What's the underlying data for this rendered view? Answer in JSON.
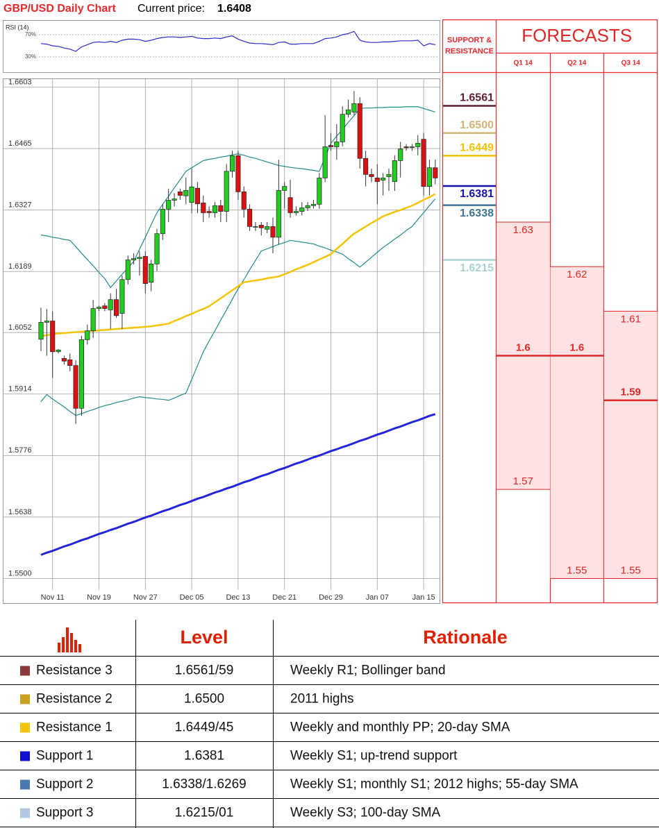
{
  "header": {
    "title": "GBP/USD Daily Chart",
    "price_label": "Current price:",
    "price": 1.6408
  },
  "chart_data": [
    {
      "type": "candlestick",
      "categories": [
        null,
        null,
        "Nov 11",
        null,
        null,
        null,
        null,
        null,
        null,
        null,
        "Nov 19",
        null,
        null,
        null,
        null,
        null,
        null,
        null,
        "Nov 27",
        null,
        null,
        null,
        null,
        null,
        null,
        null,
        "Dec 05",
        null,
        null,
        null,
        null,
        null,
        null,
        null,
        "Dec 13",
        null,
        null,
        null,
        null,
        null,
        null,
        null,
        "Dec 21",
        null,
        null,
        null,
        null,
        null,
        null,
        null,
        "Dec 29",
        null,
        null,
        null,
        null,
        null,
        null,
        null,
        "Jan 07",
        null,
        null,
        null,
        null,
        null,
        null,
        null,
        "Jan 15",
        null,
        null
      ],
      "open": [
        1.6037,
        1.6075,
        1.6078,
        1.6009,
        1.5994,
        1.5991,
        1.5978,
        1.5882,
        1.6036,
        1.6056,
        1.6106,
        1.6112,
        1.6103,
        1.6126,
        1.6095,
        1.6171,
        1.6215,
        1.6218,
        1.6223,
        1.6165,
        1.6206,
        1.6274,
        1.6329,
        1.6349,
        1.6368,
        1.6359,
        1.6344,
        1.6376,
        1.6343,
        1.6324,
        1.6321,
        1.6337,
        1.6324,
        1.6414,
        1.6449,
        1.6368,
        1.6329,
        1.629,
        1.6293,
        1.6284,
        1.629,
        1.6266,
        1.6371,
        1.6355,
        1.6321,
        1.6324,
        1.6332,
        1.6337,
        1.634,
        1.6399,
        1.6472,
        1.6469,
        1.648,
        1.6542,
        1.6547,
        1.6566,
        1.6443,
        1.6407,
        1.6399,
        1.6394,
        1.6402,
        1.6391,
        1.6438,
        1.6469,
        1.6469,
        1.6469,
        1.6486,
        1.638,
        1.6422
      ],
      "high": [
        1.6108,
        1.6105,
        1.61,
        1.6015,
        1.6,
        1.6005,
        1.599,
        1.6045,
        1.607,
        1.6125,
        1.6112,
        1.6118,
        1.614,
        1.615,
        1.618,
        1.6225,
        1.623,
        1.6235,
        1.6235,
        1.6215,
        1.6285,
        1.634,
        1.6375,
        1.6365,
        1.6375,
        1.64,
        1.642,
        1.639,
        1.636,
        1.6335,
        1.6345,
        1.635,
        1.643,
        1.646,
        1.646,
        1.638,
        1.634,
        1.63,
        1.63,
        1.63,
        1.631,
        1.644,
        1.639,
        1.6395,
        1.6335,
        1.6345,
        1.6345,
        1.635,
        1.641,
        1.654,
        1.65,
        1.652,
        1.656,
        1.6575,
        1.6594,
        1.658,
        1.646,
        1.642,
        1.643,
        1.641,
        1.642,
        1.645,
        1.648,
        1.6475,
        1.6475,
        1.6495,
        1.65,
        1.644,
        1.644
      ],
      "low": [
        1.601,
        1.6,
        1.595,
        1.6005,
        1.598,
        1.5965,
        1.5847,
        1.5865,
        1.6025,
        1.604,
        1.61,
        1.61,
        1.606,
        1.6085,
        1.606,
        1.616,
        1.6205,
        1.618,
        1.614,
        1.6145,
        1.619,
        1.626,
        1.63,
        1.6335,
        1.635,
        1.634,
        1.632,
        1.632,
        1.63,
        1.631,
        1.631,
        1.63,
        1.63,
        1.64,
        1.635,
        1.631,
        1.628,
        1.628,
        1.627,
        1.6275,
        1.623,
        1.625,
        1.633,
        1.631,
        1.6315,
        1.6315,
        1.6325,
        1.633,
        1.633,
        1.639,
        1.646,
        1.644,
        1.647,
        1.6535,
        1.654,
        1.642,
        1.638,
        1.639,
        1.634,
        1.636,
        1.637,
        1.637,
        1.64,
        1.646,
        1.646,
        1.645,
        1.636,
        1.636,
        1.6385
      ],
      "close": [
        1.6075,
        1.6078,
        1.6009,
        1.6013,
        1.5988,
        1.5978,
        1.5882,
        1.6036,
        1.6056,
        1.6106,
        1.6109,
        1.6106,
        1.6126,
        1.609,
        1.6171,
        1.6215,
        1.6218,
        1.6221,
        1.6162,
        1.6206,
        1.6274,
        1.6329,
        1.6349,
        1.6352,
        1.636,
        1.6371,
        1.6379,
        1.6341,
        1.6321,
        1.6321,
        1.6337,
        1.6324,
        1.6414,
        1.6449,
        1.6368,
        1.6329,
        1.629,
        1.629,
        1.6287,
        1.629,
        1.6266,
        1.6371,
        1.638,
        1.6321,
        1.6324,
        1.6332,
        1.6337,
        1.634,
        1.6399,
        1.6469,
        1.6469,
        1.648,
        1.6542,
        1.6552,
        1.6566,
        1.6443,
        1.6407,
        1.6402,
        1.6391,
        1.6399,
        1.6407,
        1.6438,
        1.6464,
        1.6467,
        1.6469,
        1.6477,
        1.638,
        1.6422,
        1.6399
      ],
      "up_color": "#22cc22",
      "down_color": "#dd1111",
      "series": [
        {
          "color": "#1f8a8a",
          "values": [
            1.6271,
            1.6269,
            1.6266,
            1.6264,
            1.6261,
            1.6259,
            1.6245,
            1.623,
            1.6216,
            1.6202,
            1.6187,
            1.6173,
            1.6153,
            1.6168,
            1.6183,
            1.6197,
            1.6212,
            1.6239,
            1.6266,
            1.6294,
            1.6321,
            1.634,
            1.6358,
            1.6377,
            1.6395,
            1.6414,
            1.6422,
            1.643,
            1.6438,
            1.6441,
            1.6443,
            1.6446,
            1.6448,
            1.6451,
            1.6453,
            1.645,
            1.6446,
            1.6443,
            1.6439,
            1.6435,
            1.6431,
            1.6427,
            1.6425,
            1.6423,
            1.6421,
            1.642,
            1.6418,
            1.6416,
            1.6414,
            1.6445,
            1.6477,
            1.6493,
            1.6508,
            1.6524,
            1.6539,
            1.6555,
            1.6556,
            1.6556,
            1.6557,
            1.6557,
            1.6558,
            1.6558,
            1.6558,
            1.6559,
            1.6559,
            1.6559,
            1.6555,
            1.6551,
            1.6547
          ]
        },
        {
          "color": "#1f8a8a",
          "values": [
            1.5897,
            1.5913,
            1.5903,
            1.5894,
            1.5885,
            1.5875,
            1.5866,
            1.587,
            1.5875,
            1.5879,
            1.5884,
            1.5888,
            1.5891,
            1.5895,
            1.5898,
            1.5901,
            1.5905,
            1.5908,
            1.5906,
            1.5905,
            1.5903,
            1.5902,
            1.59,
            1.5905,
            1.5911,
            1.5916,
            1.5947,
            1.5978,
            1.6009,
            1.6033,
            1.6056,
            1.608,
            1.6103,
            1.6127,
            1.615,
            1.6171,
            1.6193,
            1.6214,
            1.6235,
            1.624,
            1.6245,
            1.625,
            1.6254,
            1.6259,
            1.6257,
            1.6255,
            1.6253,
            1.6251,
            1.6246,
            1.6242,
            1.6237,
            1.6233,
            1.6228,
            1.6218,
            1.6209,
            1.6199,
            1.621,
            1.6221,
            1.6232,
            1.6243,
            1.6252,
            1.6262,
            1.6271,
            1.6281,
            1.629,
            1.6306,
            1.6321,
            1.6337,
            1.6352
          ]
        },
        {
          "color": "#f5c400",
          "values": [
            1.6044,
            1.6046,
            1.6048,
            1.605,
            1.6051,
            1.6052,
            1.6053,
            1.6054,
            1.6055,
            1.6056,
            1.6057,
            1.6058,
            1.6059,
            1.606,
            1.6061,
            1.6062,
            1.6063,
            1.6064,
            1.6065,
            1.6066,
            1.6068,
            1.607,
            1.6072,
            1.6078,
            1.6083,
            1.6089,
            1.6094,
            1.61,
            1.6105,
            1.6111,
            1.612,
            1.6129,
            1.6138,
            1.6147,
            1.6156,
            1.6165,
            1.6167,
            1.6169,
            1.6171,
            1.6174,
            1.6176,
            1.6178,
            1.6183,
            1.6188,
            1.6194,
            1.6199,
            1.6204,
            1.621,
            1.6216,
            1.6222,
            1.6228,
            1.624,
            1.6251,
            1.6263,
            1.6274,
            1.6282,
            1.629,
            1.6298,
            1.6305,
            1.6313,
            1.6318,
            1.6323,
            1.6327,
            1.6332,
            1.6337,
            1.6343,
            1.635,
            1.6356,
            1.6363
          ]
        },
        {
          "color": "#2424dd",
          "values": [
            1.5553,
            1.5558,
            1.5562,
            1.5567,
            1.5572,
            1.5576,
            1.5581,
            1.5586,
            1.559,
            1.5595,
            1.56,
            1.5604,
            1.5609,
            1.5613,
            1.5618,
            1.5623,
            1.5627,
            1.5632,
            1.5637,
            1.5641,
            1.5646,
            1.5651,
            1.5655,
            1.566,
            1.5665,
            1.5669,
            1.5674,
            1.5679,
            1.5683,
            1.5688,
            1.5693,
            1.5697,
            1.5702,
            1.5706,
            1.5711,
            1.5716,
            1.572,
            1.5725,
            1.573,
            1.5734,
            1.5739,
            1.5744,
            1.5748,
            1.5753,
            1.5758,
            1.5762,
            1.5767,
            1.5772,
            1.5776,
            1.5781,
            1.5786,
            1.579,
            1.5795,
            1.5799,
            1.5804,
            1.5809,
            1.5813,
            1.5818,
            1.5823,
            1.5827,
            1.5832,
            1.5837,
            1.5841,
            1.5846,
            1.5851,
            1.5855,
            1.586,
            1.5865,
            1.5869
          ]
        }
      ],
      "ylim": [
        1.55,
        1.6603
      ],
      "yticks": [
        1.6603,
        1.6465,
        1.6327,
        1.6189,
        1.6052,
        1.5914,
        1.5776,
        1.5638,
        {
          "value": 1.55,
          "label": "1.5500"
        }
      ],
      "grid": true
    },
    {
      "type": "line",
      "title": "RSI (14)",
      "color": "#2a2acc",
      "values": [
        54,
        53,
        50,
        49,
        46,
        44,
        40,
        48,
        52,
        56,
        57,
        56,
        58,
        56,
        60,
        62,
        62,
        61,
        58,
        60,
        63,
        65,
        66,
        66,
        65,
        66,
        67,
        64,
        63,
        63,
        64,
        63,
        66,
        68,
        62,
        58,
        55,
        54,
        54,
        53,
        52,
        56,
        57,
        53,
        53,
        54,
        54,
        54,
        58,
        63,
        64,
        66,
        70,
        72,
        76,
        60,
        57,
        56,
        56,
        57,
        57,
        58,
        59,
        59,
        59,
        60,
        50,
        54,
        52
      ],
      "ylim": [
        5,
        85
      ],
      "yticks": [
        {
          "value": 70,
          "label": "70%"
        },
        {
          "value": 30,
          "label": "30%"
        }
      ]
    },
    {
      "type": "levels",
      "title": "SUPPORT & RESISTANCE",
      "values": [
        1.6561,
        1.65,
        1.6449,
        1.6381,
        1.6338,
        1.6215
      ],
      "value_labels": [
        "1.6561",
        "1.6500",
        "1.6449",
        "1.6381",
        "1.6338",
        "1.6215"
      ],
      "colors": [
        "#5c1c34",
        "#d4b47a",
        "#f2c200",
        "#1212a8",
        "#3f7393",
        "#a9d3d3"
      ],
      "ylim": [
        1.55,
        1.6603
      ]
    },
    {
      "type": "range",
      "title": "FORECASTS",
      "categories": [
        "Q1 14",
        "Q2 14",
        "Q3 14"
      ],
      "high": [
        1.63,
        1.62,
        1.61
      ],
      "median": [
        1.6,
        1.6,
        1.59
      ],
      "low": [
        1.57,
        1.55,
        1.55
      ],
      "color": "#ffe3e3",
      "line_color": "#e02626",
      "ylim": [
        1.55,
        1.6603
      ]
    }
  ],
  "table": {
    "header": [
      "Level",
      "Rationale"
    ],
    "rows": [
      {
        "name": "Resistance 3",
        "color": "#8b3a3a",
        "level": "1.6561/59",
        "rationale": "Weekly R1; Bollinger band"
      },
      {
        "name": "Resistance 2",
        "color": "#c9a020",
        "level": "1.6500",
        "rationale": "2011 highs"
      },
      {
        "name": "Resistance 1",
        "color": "#f5c400",
        "level": "1.6449/45",
        "rationale": "Weekly and monthly PP; 20-day SMA"
      },
      {
        "name": "Support 1",
        "color": "#1010d0",
        "level": "1.6381",
        "rationale": "Weekly S1; up-trend support"
      },
      {
        "name": "Support 2",
        "color": "#4a7ab0",
        "level": "1.6338/1.6269",
        "rationale": "Weekly S1; monthly S1; 2012 highs; 55-day SMA"
      },
      {
        "name": "Support 3",
        "color": "#b4c8e6",
        "level": "1.6215/01",
        "rationale": "Weekly S3; 100-day SMA"
      }
    ]
  }
}
